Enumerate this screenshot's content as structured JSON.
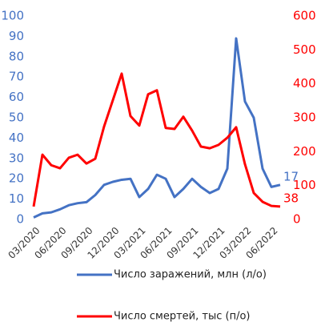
{
  "chart_data": {
    "type": "line",
    "categories": [
      "03/2020",
      null,
      null,
      "06/2020",
      null,
      null,
      "09/2020",
      null,
      null,
      "12/2020",
      null,
      null,
      "03/2021",
      null,
      null,
      "06/2021",
      null,
      null,
      "09/2021",
      null,
      null,
      "12/2021",
      null,
      null,
      "03/2022",
      null,
      null,
      "06/2022",
      null
    ],
    "series": [
      {
        "name": "Число заражений, млн (л/о)",
        "color": "#4472c4",
        "axis": "y",
        "values": [
          1,
          3,
          3.5,
          5,
          7,
          8,
          8.5,
          12,
          17,
          18.5,
          19.5,
          20,
          11,
          15,
          22,
          20,
          11,
          15,
          20,
          16,
          13,
          15,
          25,
          89,
          58,
          50,
          25,
          16,
          17
        ]
      },
      {
        "name": "Число смертей, тыс (п/о)",
        "color": "#ff0000",
        "axis": "y2",
        "values": [
          38,
          191,
          160,
          151,
          182,
          191,
          165,
          179,
          274,
          352,
          430,
          305,
          277,
          369,
          381,
          270,
          267,
          303,
          262,
          215,
          210,
          220,
          241,
          272,
          163,
          78,
          52,
          40,
          38
        ]
      }
    ],
    "ylim": [
      0,
      100
    ],
    "yticks": [
      0,
      10,
      20,
      30,
      40,
      50,
      60,
      70,
      80,
      90,
      100
    ],
    "y2lim": [
      0,
      600
    ],
    "y2ticks": [
      0,
      100,
      200,
      300,
      400,
      500,
      600
    ],
    "grid": false,
    "legend": "bottom"
  }
}
